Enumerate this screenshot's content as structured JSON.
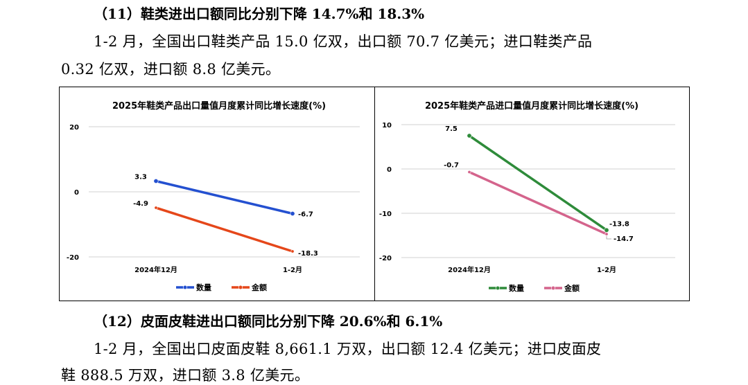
{
  "section11": {
    "heading": "（11）鞋类进出口额同比分别下降 14.7%和 18.3%",
    "para_line1": "1-2 月，全国出口鞋类产品 15.0 亿双，出口额 70.7 亿美元；进口鞋类产品",
    "para_line2": "0.32 亿双，进口额 8.8 亿美元。"
  },
  "section12": {
    "heading": "（12）皮面皮鞋进出口额同比分别下降 20.6%和 6.1%",
    "para_line1": "1-2 月，全国出口皮面皮鞋 8,661.1 万双，出口额 12.4 亿美元；进口皮面皮",
    "para_line2": "鞋 888.5 万双，进口额 3.8 亿美元。"
  },
  "chart_data": [
    {
      "type": "line",
      "title": "2025年鞋类产品出口量值月度累计同比增长速度(%)",
      "categories": [
        "2024年12月",
        "1-2月"
      ],
      "yticks": [
        20,
        0,
        -20
      ],
      "ylim": [
        -20,
        20
      ],
      "grid": true,
      "legend": "bottom",
      "series": [
        {
          "name": "数量",
          "values": [
            3.3,
            -6.7
          ],
          "labels": [
            "3.3",
            "-6.7"
          ],
          "color": "#2450D0"
        },
        {
          "name": "金额",
          "values": [
            -4.9,
            -18.3
          ],
          "labels": [
            "-4.9",
            "-18.3"
          ],
          "color": "#E5471A"
        }
      ]
    },
    {
      "type": "line",
      "title": "2025年鞋类产品进口量值月度累计同比增长速度(%)",
      "categories": [
        "2024年12月",
        "1-2月"
      ],
      "yticks": [
        10,
        0,
        -10,
        -20
      ],
      "ylim": [
        -20,
        10
      ],
      "grid": true,
      "legend": "bottom",
      "series": [
        {
          "name": "数量",
          "values": [
            7.5,
            -13.8
          ],
          "labels": [
            "7.5",
            "-13.8"
          ],
          "color": "#2E8B3A"
        },
        {
          "name": "金额",
          "values": [
            -0.7,
            -14.7
          ],
          "labels": [
            "-0.7",
            "-14.7"
          ],
          "color": "#D4648C"
        }
      ]
    }
  ]
}
